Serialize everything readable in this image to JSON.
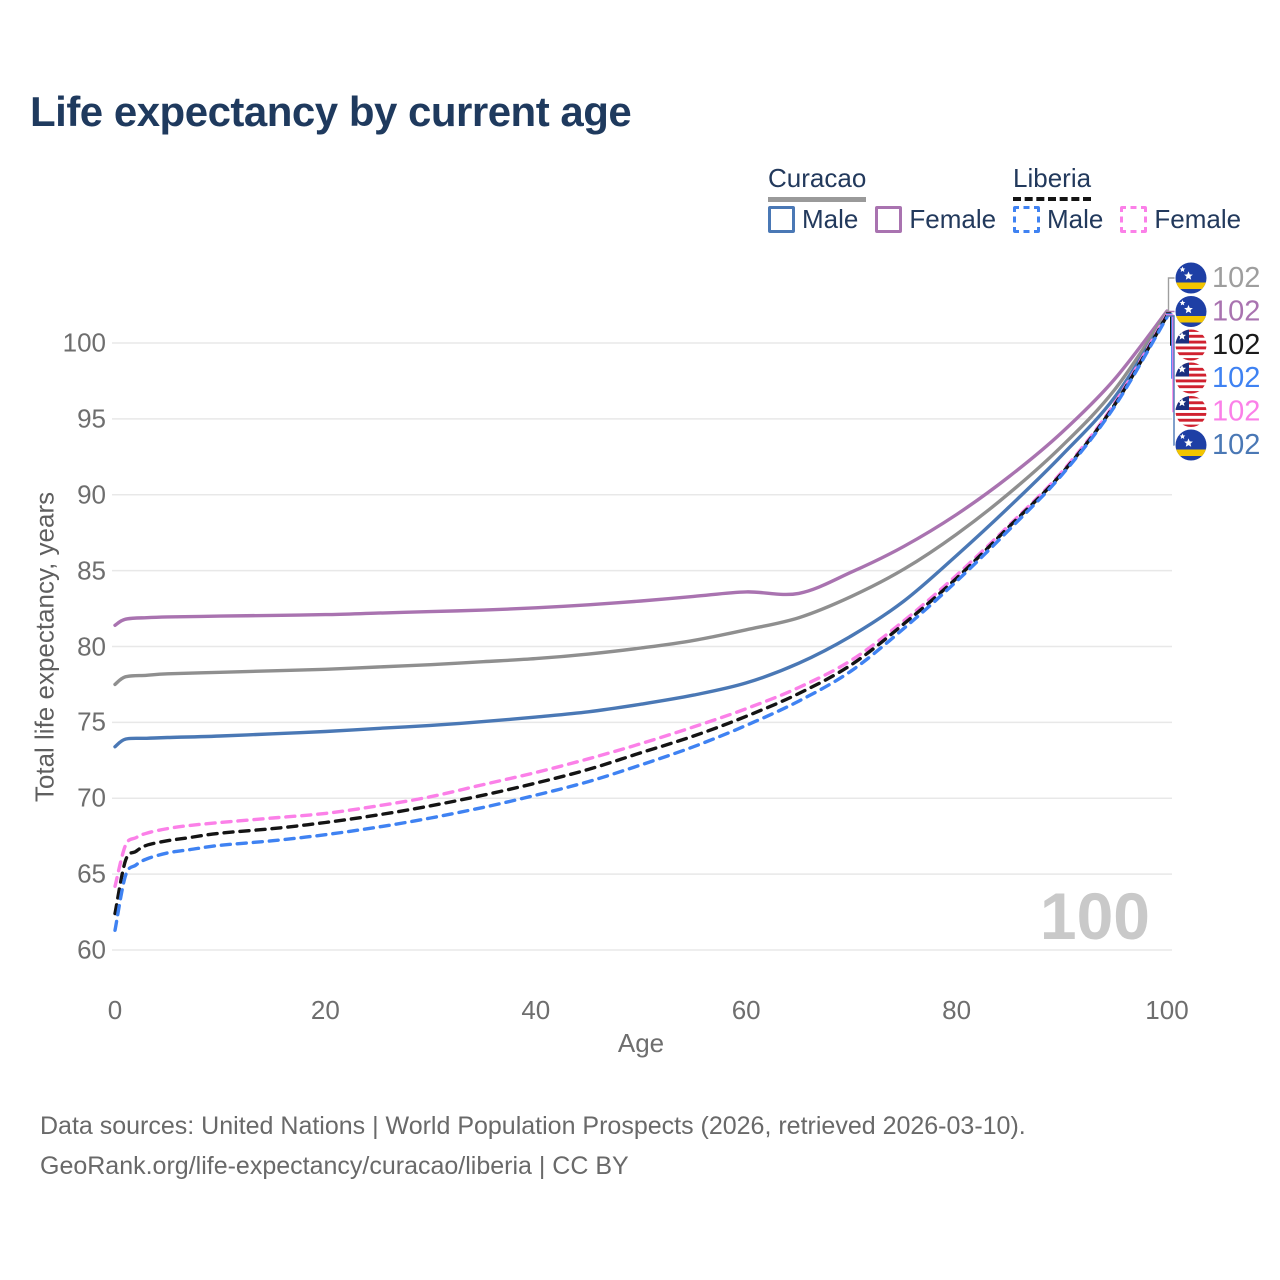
{
  "title": "Life expectancy by current age",
  "legend": {
    "groups": [
      {
        "country": "Curacao",
        "line_style": "solid",
        "underline_color": "#9a9a9a",
        "items": [
          {
            "label": "Male",
            "color": "#4a78b5"
          },
          {
            "label": "Female",
            "color": "#a973b0"
          }
        ]
      },
      {
        "country": "Liberia",
        "line_style": "dashed",
        "underline_color": "#141414",
        "items": [
          {
            "label": "Male",
            "color": "#3f82f2"
          },
          {
            "label": "Female",
            "color": "#fb80e8"
          }
        ]
      }
    ]
  },
  "y_axis": {
    "title": "Total life expectancy, years",
    "ticks": [
      100,
      95,
      90,
      85,
      80,
      75,
      70,
      65,
      60
    ]
  },
  "x_axis": {
    "title": "Age",
    "ticks": [
      0,
      20,
      40,
      60,
      80,
      100
    ]
  },
  "watermark": "100",
  "end_labels": [
    {
      "flag": "curacao",
      "value": "102",
      "color": "#9e9e9e"
    },
    {
      "flag": "curacao",
      "value": "102",
      "color": "#a973b0"
    },
    {
      "flag": "liberia",
      "value": "102",
      "color": "#1a1a1a"
    },
    {
      "flag": "liberia",
      "value": "102",
      "color": "#3f82f2"
    },
    {
      "flag": "liberia",
      "value": "102",
      "color": "#fb80e8"
    },
    {
      "flag": "curacao",
      "value": "102",
      "color": "#4a78b5"
    }
  ],
  "footer": {
    "line1": "Data sources: United Nations | World Population Prospects (2026, retrieved 2026-03-10).",
    "line2": "GeoRank.org/life-expectancy/curacao/liberia | CC BY"
  },
  "chart_data": {
    "type": "line",
    "title": "Life expectancy by current age",
    "xlabel": "Age",
    "ylabel": "Total life expectancy, years",
    "xlim": [
      0,
      100
    ],
    "ylim": [
      60,
      102.5
    ],
    "x_ticks": [
      0,
      20,
      40,
      60,
      80,
      100
    ],
    "y_ticks": [
      60,
      65,
      70,
      75,
      80,
      85,
      90,
      95,
      100
    ],
    "grid": "horizontal",
    "legend_position": "top-right",
    "series": [
      {
        "name": "Curacao Female",
        "color": "#a973b0",
        "dash": "solid",
        "points": [
          [
            0,
            81.4
          ],
          [
            1,
            81.8
          ],
          [
            3,
            81.9
          ],
          [
            5,
            81.95
          ],
          [
            10,
            82.0
          ],
          [
            15,
            82.05
          ],
          [
            20,
            82.1
          ],
          [
            25,
            82.2
          ],
          [
            30,
            82.3
          ],
          [
            35,
            82.4
          ],
          [
            40,
            82.55
          ],
          [
            45,
            82.75
          ],
          [
            50,
            83.0
          ],
          [
            55,
            83.3
          ],
          [
            60,
            83.6
          ],
          [
            65,
            83.5
          ],
          [
            70,
            84.9
          ],
          [
            75,
            86.6
          ],
          [
            80,
            88.7
          ],
          [
            85,
            91.2
          ],
          [
            90,
            94.1
          ],
          [
            95,
            97.6
          ],
          [
            100,
            102.1
          ]
        ]
      },
      {
        "name": "Curacao Both",
        "color": "#8f8f8f",
        "dash": "solid",
        "points": [
          [
            0,
            77.5
          ],
          [
            1,
            78.0
          ],
          [
            3,
            78.1
          ],
          [
            5,
            78.2
          ],
          [
            10,
            78.3
          ],
          [
            15,
            78.4
          ],
          [
            20,
            78.5
          ],
          [
            25,
            78.65
          ],
          [
            30,
            78.8
          ],
          [
            35,
            79.0
          ],
          [
            40,
            79.2
          ],
          [
            45,
            79.5
          ],
          [
            50,
            79.9
          ],
          [
            55,
            80.4
          ],
          [
            60,
            81.1
          ],
          [
            65,
            81.9
          ],
          [
            70,
            83.3
          ],
          [
            75,
            85.1
          ],
          [
            80,
            87.4
          ],
          [
            85,
            90.1
          ],
          [
            90,
            93.2
          ],
          [
            95,
            96.9
          ],
          [
            100,
            102.0
          ]
        ]
      },
      {
        "name": "Curacao Male",
        "color": "#4a78b5",
        "dash": "solid",
        "points": [
          [
            0,
            73.4
          ],
          [
            1,
            73.9
          ],
          [
            3,
            73.95
          ],
          [
            5,
            74.0
          ],
          [
            10,
            74.1
          ],
          [
            15,
            74.25
          ],
          [
            20,
            74.4
          ],
          [
            25,
            74.6
          ],
          [
            30,
            74.8
          ],
          [
            35,
            75.05
          ],
          [
            40,
            75.35
          ],
          [
            45,
            75.7
          ],
          [
            50,
            76.2
          ],
          [
            55,
            76.8
          ],
          [
            60,
            77.6
          ],
          [
            65,
            78.9
          ],
          [
            70,
            80.7
          ],
          [
            75,
            83.0
          ],
          [
            80,
            86.0
          ],
          [
            85,
            89.2
          ],
          [
            90,
            92.6
          ],
          [
            95,
            96.4
          ],
          [
            100,
            101.8
          ]
        ]
      },
      {
        "name": "Liberia Female",
        "color": "#fb80e8",
        "dash": "dashed",
        "points": [
          [
            0,
            64.2
          ],
          [
            1,
            66.9
          ],
          [
            2,
            67.4
          ],
          [
            3,
            67.7
          ],
          [
            5,
            68.0
          ],
          [
            7,
            68.2
          ],
          [
            10,
            68.4
          ],
          [
            15,
            68.7
          ],
          [
            20,
            69.0
          ],
          [
            25,
            69.5
          ],
          [
            30,
            70.1
          ],
          [
            35,
            70.9
          ],
          [
            40,
            71.7
          ],
          [
            45,
            72.6
          ],
          [
            50,
            73.6
          ],
          [
            55,
            74.7
          ],
          [
            60,
            75.9
          ],
          [
            65,
            77.3
          ],
          [
            70,
            79.1
          ],
          [
            75,
            81.7
          ],
          [
            80,
            84.7
          ],
          [
            85,
            88.0
          ],
          [
            90,
            91.5
          ],
          [
            95,
            96.0
          ],
          [
            100,
            101.9
          ]
        ]
      },
      {
        "name": "Liberia Both",
        "color": "#141414",
        "dash": "dashed",
        "points": [
          [
            0,
            62.4
          ],
          [
            1,
            65.9
          ],
          [
            2,
            66.5
          ],
          [
            3,
            66.9
          ],
          [
            5,
            67.2
          ],
          [
            7,
            67.4
          ],
          [
            10,
            67.7
          ],
          [
            15,
            68.0
          ],
          [
            20,
            68.4
          ],
          [
            25,
            68.9
          ],
          [
            30,
            69.5
          ],
          [
            35,
            70.2
          ],
          [
            40,
            71.0
          ],
          [
            45,
            71.9
          ],
          [
            50,
            73.0
          ],
          [
            55,
            74.1
          ],
          [
            60,
            75.4
          ],
          [
            65,
            76.9
          ],
          [
            70,
            78.8
          ],
          [
            75,
            81.5
          ],
          [
            80,
            84.5
          ],
          [
            85,
            87.9
          ],
          [
            90,
            91.4
          ],
          [
            95,
            95.9
          ],
          [
            100,
            101.8
          ]
        ]
      },
      {
        "name": "Liberia Male",
        "color": "#3f82f2",
        "dash": "dashed",
        "points": [
          [
            0,
            61.3
          ],
          [
            1,
            64.9
          ],
          [
            2,
            65.6
          ],
          [
            3,
            66.0
          ],
          [
            5,
            66.4
          ],
          [
            7,
            66.6
          ],
          [
            10,
            66.9
          ],
          [
            15,
            67.2
          ],
          [
            20,
            67.6
          ],
          [
            25,
            68.1
          ],
          [
            30,
            68.7
          ],
          [
            35,
            69.4
          ],
          [
            40,
            70.2
          ],
          [
            45,
            71.1
          ],
          [
            50,
            72.2
          ],
          [
            55,
            73.4
          ],
          [
            60,
            74.8
          ],
          [
            65,
            76.4
          ],
          [
            70,
            78.4
          ],
          [
            75,
            81.2
          ],
          [
            80,
            84.3
          ],
          [
            85,
            87.7
          ],
          [
            90,
            91.3
          ],
          [
            95,
            95.8
          ],
          [
            100,
            101.7
          ]
        ]
      }
    ]
  }
}
